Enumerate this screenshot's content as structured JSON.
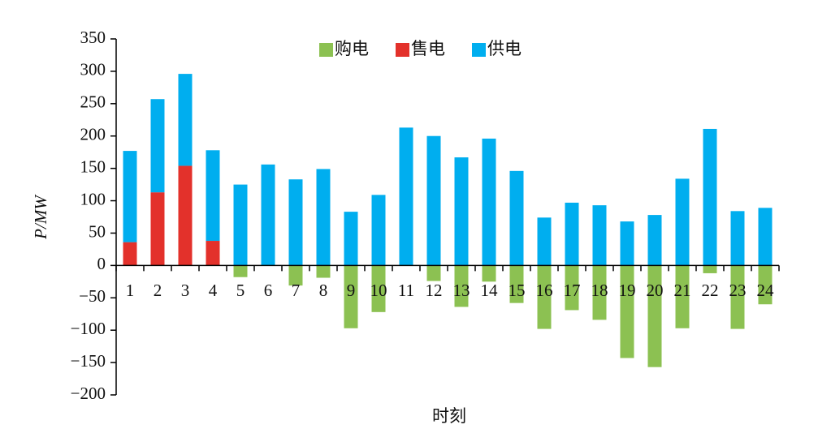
{
  "chart_data": {
    "type": "bar",
    "stacked": true,
    "xlabel": "时刻",
    "ylabel": "P/MW",
    "categories": [
      "1",
      "2",
      "3",
      "4",
      "5",
      "6",
      "7",
      "8",
      "9",
      "10",
      "11",
      "12",
      "13",
      "14",
      "15",
      "16",
      "17",
      "18",
      "19",
      "20",
      "21",
      "22",
      "23",
      "24"
    ],
    "series": [
      {
        "name": "购电",
        "color": "#8cc152",
        "values": [
          0,
          0,
          0,
          0,
          -18,
          0,
          -31,
          -19,
          -97,
          -72,
          0,
          -24,
          -64,
          -25,
          -58,
          -98,
          -69,
          -84,
          -143,
          -157,
          -97,
          -12,
          -98,
          -60
        ]
      },
      {
        "name": "售电",
        "color": "#e3312b",
        "values": [
          36,
          113,
          154,
          38,
          0,
          0,
          0,
          0,
          0,
          0,
          0,
          0,
          0,
          0,
          0,
          0,
          0,
          0,
          0,
          0,
          0,
          0,
          0,
          0
        ]
      },
      {
        "name": "供电",
        "color": "#00aeef",
        "values": [
          141,
          144,
          142,
          140,
          125,
          156,
          133,
          149,
          83,
          109,
          213,
          200,
          167,
          196,
          146,
          74,
          97,
          93,
          68,
          78,
          134,
          211,
          84,
          89
        ]
      }
    ],
    "ylim": [
      -200,
      350
    ],
    "yticks": [
      {
        "value": -200,
        "label": "−200"
      },
      {
        "value": -150,
        "label": "−150"
      },
      {
        "value": -100,
        "label": "−100"
      },
      {
        "value": -50,
        "label": "−50"
      },
      0,
      50,
      100,
      150,
      200,
      250,
      300,
      350
    ],
    "legend": "top"
  }
}
